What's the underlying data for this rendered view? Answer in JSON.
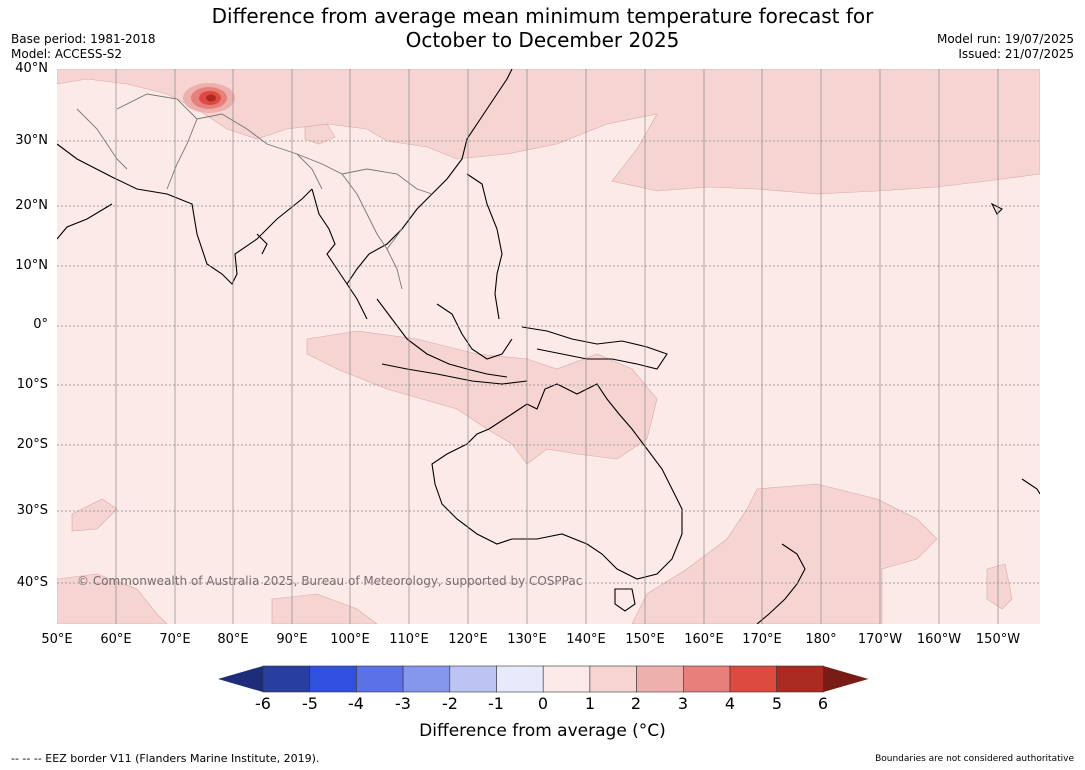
{
  "title_line1": "Difference from average mean minimum temperature forecast for",
  "title_line2": "October to December 2025",
  "base_period": "Base period: 1981-2018",
  "model": "Model: ACCESS-S2",
  "model_run": "Model run: 19/07/2025",
  "issued": "Issued: 21/07/2025",
  "lat_labels": [
    "40°N",
    "30°N",
    "20°N",
    "10°N",
    "0°",
    "10°S",
    "20°S",
    "30°S",
    "40°S"
  ],
  "lon_labels": [
    "50°E",
    "60°E",
    "70°E",
    "80°E",
    "90°E",
    "100°E",
    "110°E",
    "120°E",
    "130°E",
    "140°E",
    "150°E",
    "160°E",
    "170°E",
    "180°",
    "170°W",
    "160°W",
    "150°W"
  ],
  "copyright": "© Commonwealth of Australia 2025, Bureau of Meteorology, supported by COSPPac",
  "legend": {
    "title": "Difference from average (°C)",
    "ticks": [
      "-6",
      "-5",
      "-4",
      "-3",
      "-2",
      "-1",
      "0",
      "1",
      "2",
      "3",
      "4",
      "5",
      "6"
    ],
    "colors": [
      "#283f9f",
      "#3050e0",
      "#5a72e6",
      "#8597ec",
      "#bcc4f3",
      "#e8eafb",
      "#fbeae8",
      "#f5d4d2",
      "#eeb0ac",
      "#e7807a",
      "#dd4a40",
      "#ab2a22"
    ],
    "under_color": "#1e2d7a",
    "over_color": "#7a1c16"
  },
  "footer_left": "--  --  -- EEZ border V11 (Flanders Marine Institute, 2019).",
  "footer_right": "Boundaries are not considered authoritative"
}
